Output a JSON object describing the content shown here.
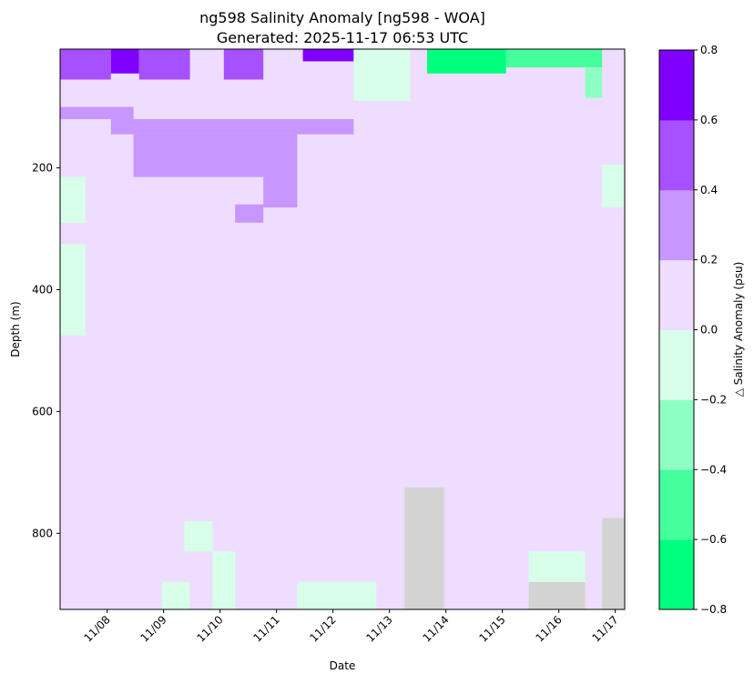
{
  "chart_data": {
    "type": "heatmap",
    "title": "ng598 Salinity Anomaly [ng598 - WOA]",
    "subtitle": "Generated: 2025-11-17 06:53 UTC",
    "xlabel": "Date",
    "ylabel": "Depth (m)",
    "colorbar_label": "△ Salinity Anomaly (psu)",
    "y_inverted": true,
    "ylim": [
      925,
      5
    ],
    "x_range": [
      "11/07 04:00",
      "11/17 08:00"
    ],
    "x_ticks": [
      "11/08",
      "11/09",
      "11/10",
      "11/11",
      "11/12",
      "11/13",
      "11/14",
      "11/15",
      "11/16",
      "11/17"
    ],
    "y_ticks": [
      200,
      400,
      600,
      800
    ],
    "levels": [
      -0.8,
      -0.6,
      -0.4,
      -0.2,
      0.0,
      0.2,
      0.4,
      0.6,
      0.8
    ],
    "level_labels": [
      "−0.8",
      "−0.6",
      "−0.4",
      "−0.2",
      "0.0",
      "0.2",
      "0.4",
      "0.6",
      "0.8"
    ],
    "level_colors": [
      "#00ff7f",
      "#44ff9c",
      "#8effc4",
      "#d8ffe9",
      "#eeddff",
      "#c896ff",
      "#a650ff",
      "#8000ff"
    ],
    "nodata_color": "#d3d3d3",
    "background_value": 0.1,
    "patches": [
      {
        "t0": 0.0,
        "t1": 0.9,
        "d0": 5,
        "d1": 55,
        "value": 0.5
      },
      {
        "t0": 0.9,
        "t1": 1.4,
        "d0": 5,
        "d1": 45,
        "value": 0.7
      },
      {
        "t0": 1.4,
        "t1": 2.3,
        "d0": 5,
        "d1": 55,
        "value": 0.5
      },
      {
        "t0": 2.9,
        "t1": 3.6,
        "d0": 5,
        "d1": 55,
        "value": 0.5
      },
      {
        "t0": 4.3,
        "t1": 5.2,
        "d0": 5,
        "d1": 25,
        "value": 0.7
      },
      {
        "t0": 5.2,
        "t1": 6.2,
        "d0": 5,
        "d1": 90,
        "value": -0.1
      },
      {
        "t0": 6.5,
        "t1": 7.9,
        "d0": 5,
        "d1": 45,
        "value": -0.7
      },
      {
        "t0": 7.9,
        "t1": 9.6,
        "d0": 5,
        "d1": 35,
        "value": -0.5
      },
      {
        "t0": 9.3,
        "t1": 9.6,
        "d0": 35,
        "d1": 85,
        "value": -0.3
      },
      {
        "t0": 0.0,
        "t1": 1.3,
        "d0": 100,
        "d1": 120,
        "value": 0.3
      },
      {
        "t0": 0.9,
        "t1": 5.2,
        "d0": 120,
        "d1": 145,
        "value": 0.3
      },
      {
        "t0": 1.3,
        "t1": 4.2,
        "d0": 145,
        "d1": 215,
        "value": 0.3
      },
      {
        "t0": 3.6,
        "t1": 4.2,
        "d0": 215,
        "d1": 265,
        "value": 0.3
      },
      {
        "t0": 3.1,
        "t1": 3.6,
        "d0": 260,
        "d1": 290,
        "value": 0.3
      },
      {
        "t0": 0.0,
        "t1": 0.45,
        "d0": 215,
        "d1": 290,
        "value": -0.1
      },
      {
        "t0": 0.0,
        "t1": 0.45,
        "d0": 325,
        "d1": 475,
        "value": -0.1
      },
      {
        "t0": 9.6,
        "t1": 10.0,
        "d0": 195,
        "d1": 265,
        "value": -0.1
      },
      {
        "t0": 1.8,
        "t1": 2.3,
        "d0": 880,
        "d1": 925,
        "value": -0.1
      },
      {
        "t0": 2.2,
        "t1": 2.7,
        "d0": 780,
        "d1": 830,
        "value": -0.1
      },
      {
        "t0": 2.7,
        "t1": 3.1,
        "d0": 830,
        "d1": 925,
        "value": -0.1
      },
      {
        "t0": 4.2,
        "t1": 5.6,
        "d0": 880,
        "d1": 925,
        "value": -0.1
      },
      {
        "t0": 8.3,
        "t1": 9.3,
        "d0": 830,
        "d1": 880,
        "value": -0.1
      }
    ],
    "nodata_patches": [
      {
        "t0": 6.1,
        "t1": 6.8,
        "d0": 725,
        "d1": 925
      },
      {
        "t0": 8.3,
        "t1": 9.3,
        "d0": 880,
        "d1": 925
      },
      {
        "t0": 9.6,
        "t1": 10.0,
        "d0": 775,
        "d1": 925
      }
    ]
  }
}
